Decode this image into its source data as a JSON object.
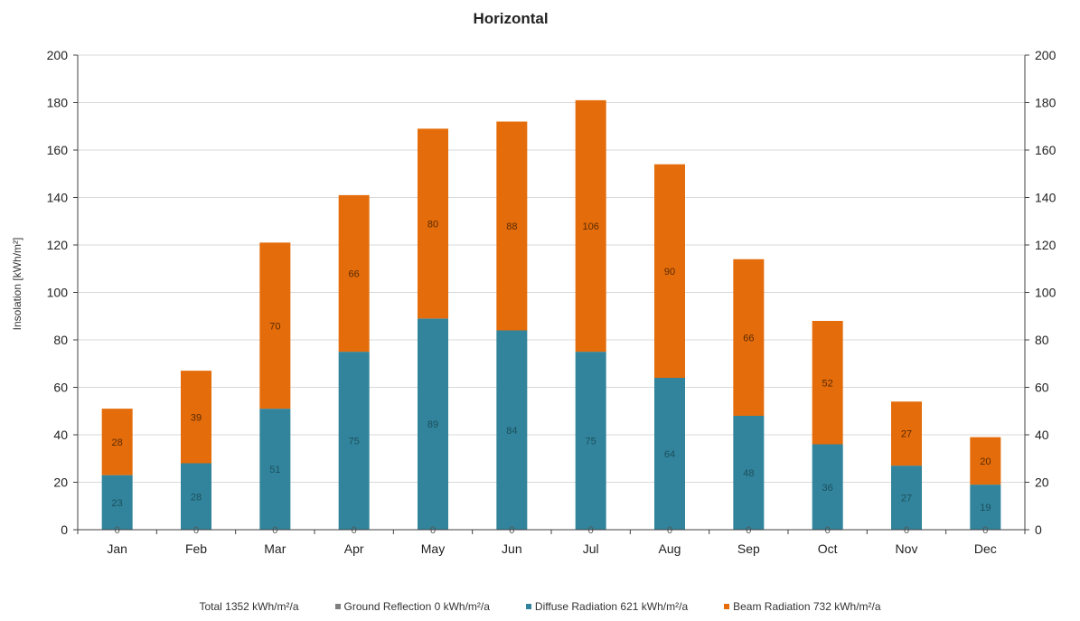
{
  "chart_data": {
    "type": "bar",
    "stacked": true,
    "title": "Horizontal",
    "ylabel": "Insolation [kWh/m²]",
    "xlabel": "",
    "ylim": [
      0,
      200
    ],
    "yticks": [
      0,
      20,
      40,
      60,
      80,
      100,
      120,
      140,
      160,
      180,
      200
    ],
    "secondary_axis": true,
    "grid": true,
    "legend_position": "bottom",
    "categories": [
      "Jan",
      "Feb",
      "Mar",
      "Apr",
      "May",
      "Jun",
      "Jul",
      "Aug",
      "Sep",
      "Oct",
      "Nov",
      "Dec"
    ],
    "series": [
      {
        "name": "Ground Reflection 0 kWh/m²/a",
        "color": "#7f7f7f",
        "values": [
          0,
          0,
          0,
          0,
          0,
          0,
          0,
          0,
          0,
          0,
          0,
          0
        ]
      },
      {
        "name": "Diffuse Radiation 621 kWh/m²/a",
        "color": "#31849b",
        "values": [
          23,
          28,
          51,
          75,
          89,
          84,
          75,
          64,
          48,
          36,
          27,
          19
        ]
      },
      {
        "name": "Beam Radiation 732 kWh/m²/a",
        "color": "#e46c0a",
        "values": [
          28,
          39,
          70,
          66,
          80,
          88,
          106,
          90,
          66,
          52,
          27,
          20
        ]
      }
    ],
    "total_label": "Total 1352 kWh/m²/a",
    "colors": {
      "diffuse": "#31849b",
      "beam": "#e46c0a",
      "ground": "#7f7f7f",
      "grid": "#d9d9d9",
      "axis": "#404040"
    }
  }
}
